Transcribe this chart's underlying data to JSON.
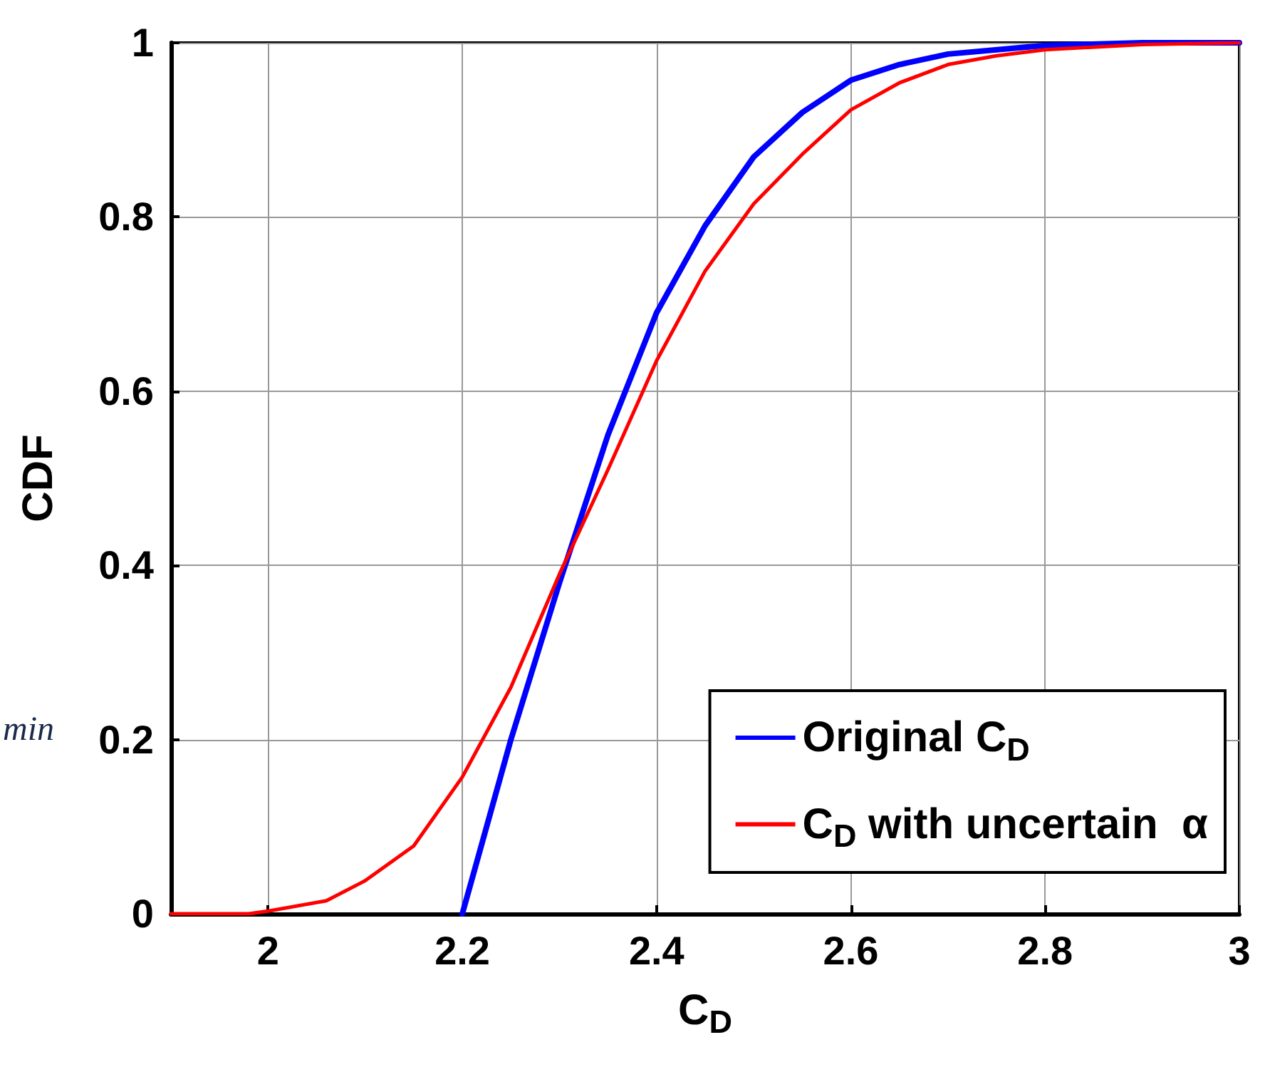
{
  "chart_data": {
    "type": "line",
    "xlabel": "C$_{D}$",
    "ylabel": "CDF",
    "annotations": [
      "min"
    ],
    "series": [
      {
        "name": "Original C$_{D}$",
        "color": "#0000ff",
        "x": [
          2.2,
          2.25,
          2.3,
          2.35,
          2.4,
          2.45,
          2.5,
          2.55,
          2.6,
          2.65,
          2.7,
          2.8,
          2.9,
          3.0
        ],
        "values": [
          0,
          0.2,
          0.38,
          0.55,
          0.69,
          0.79,
          0.869,
          0.92,
          0.957,
          0.975,
          0.987,
          0.997,
          1,
          1
        ]
      },
      {
        "name": "C$_{D}$ with uncertain  α",
        "color": "#ff0000",
        "x": [
          1.9,
          1.98,
          2.0,
          2.06,
          2.1,
          2.15,
          2.2,
          2.25,
          2.3,
          2.35,
          2.4,
          2.45,
          2.5,
          2.55,
          2.6,
          2.65,
          2.7,
          2.75,
          2.8,
          2.9,
          3.0
        ],
        "values": [
          0,
          0,
          0.003,
          0.015,
          0.038,
          0.078,
          0.157,
          0.26,
          0.39,
          0.51,
          0.635,
          0.738,
          0.815,
          0.872,
          0.923,
          0.954,
          0.975,
          0.985,
          0.992,
          0.998,
          1
        ]
      }
    ],
    "xlim": [
      1.9,
      3
    ],
    "xticks": [
      2,
      2.2,
      2.4,
      2.6,
      2.8,
      3
    ],
    "ylim": [
      0,
      1
    ],
    "yticks": [
      0,
      0.2,
      0.4,
      0.6,
      0.8,
      1
    ],
    "grid": true,
    "legend": "bottom right",
    "marker": "none",
    "line_style": "solid"
  }
}
